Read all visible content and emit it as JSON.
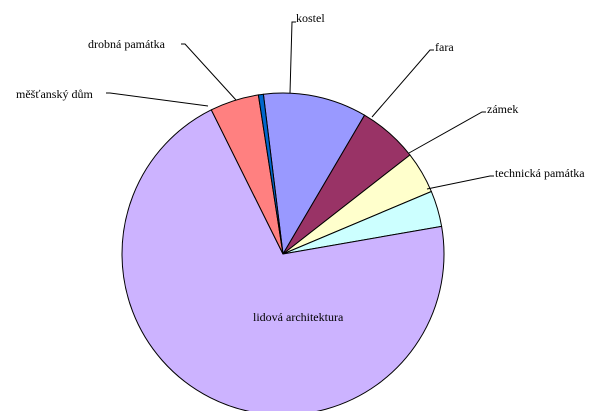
{
  "chart_data": {
    "type": "pie",
    "title": "",
    "slices": [
      {
        "label": "kostel",
        "value": 10.4,
        "color": "#9999FF"
      },
      {
        "label": "fara",
        "value": 6.0,
        "color": "#993366"
      },
      {
        "label": "zámek",
        "value": 4.2,
        "color": "#FFFFCC"
      },
      {
        "label": "technická památka",
        "value": 3.6,
        "color": "#CCFFFF"
      },
      {
        "label": "lidová architektura",
        "value": 70.4,
        "color": "#CCB3FF"
      },
      {
        "label": "měšťanský dům",
        "value": 4.9,
        "color": "#FF8080"
      },
      {
        "label": "drobná památka",
        "value": 0.5,
        "color": "#0066CC"
      }
    ],
    "start_angle_deg": -97,
    "direction": "clockwise",
    "legend": "none"
  }
}
